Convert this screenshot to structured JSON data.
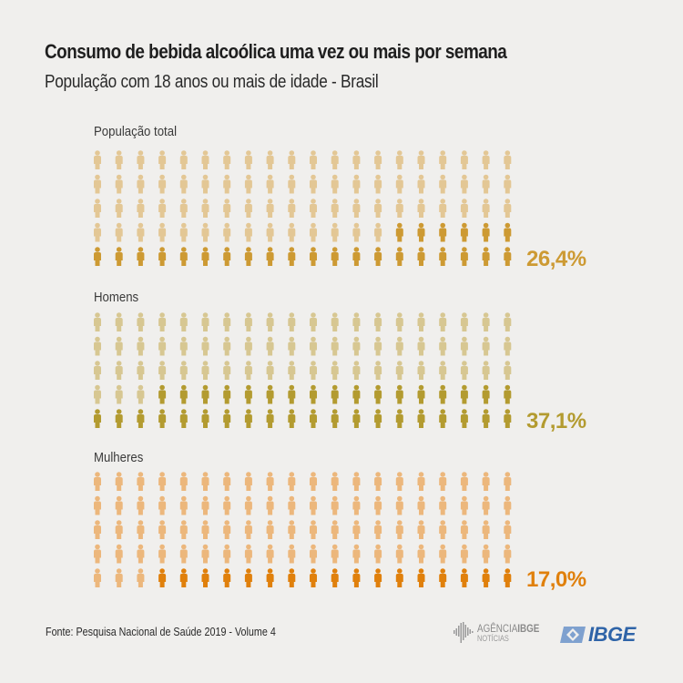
{
  "header": {
    "title": "Consumo de bebida alcoólica uma vez ou mais por semana",
    "subtitle": "População com 18 anos ou mais de idade - Brasil"
  },
  "chart_data": {
    "type": "pictogram",
    "title": "Consumo de bebida alcoólica uma vez ou mais por semana",
    "subtitle": "População com 18 anos ou mais de idade - Brasil",
    "unit": "% of population (each icon = 1%)",
    "grid": {
      "rows": 5,
      "columns": 20,
      "total_icons": 100,
      "fill_order": "bottom-row-first, right-to-left"
    },
    "series": [
      {
        "name": "População total",
        "value": 26.4,
        "label": "26,4%",
        "icons_filled": 26,
        "color_filled": "#cd9a33",
        "color_empty": "#e3c795"
      },
      {
        "name": "Homens",
        "value": 37.1,
        "label": "37,1%",
        "icons_filled": 37,
        "color_filled": "#b39b30",
        "color_empty": "#d7c792"
      },
      {
        "name": "Mulheres",
        "value": 17.0,
        "label": "17,0%",
        "icons_filled": 17,
        "color_filled": "#e0800c",
        "color_empty": "#ecb77c"
      }
    ]
  },
  "footer": {
    "source": "Fonte: Pesquisa Nacional de Saúde 2019 - Volume 4",
    "agencia_logo_top_thin": "AGÊNCIA",
    "agencia_logo_top_bold": "IBGE",
    "agencia_logo_bottom": "NOTÍCIAS",
    "ibge_logo": "IBGE",
    "ibge_color": "#2f64a8"
  }
}
